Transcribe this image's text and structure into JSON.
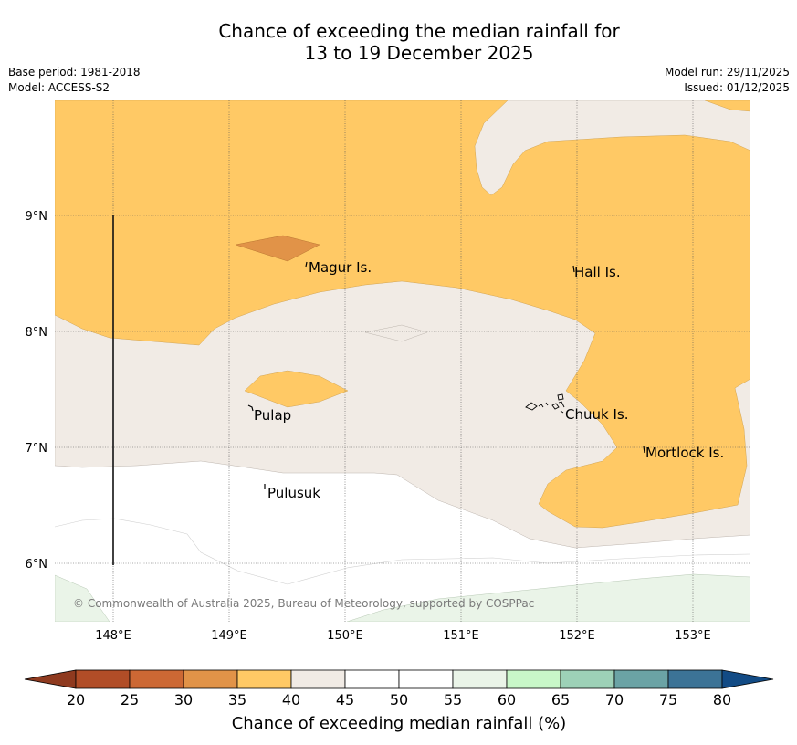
{
  "title": {
    "line1": "Chance of exceeding the median rainfall for",
    "line2": "13 to 19 December 2025"
  },
  "meta": {
    "base_period": "Base period: 1981-2018",
    "model": "Model: ACCESS-S2",
    "model_run": "Model run: 29/11/2025",
    "issued": "Issued: 01/12/2025"
  },
  "map": {
    "copyright": "© Commonwealth of Australia 2025, Bureau of Meteorology, supported by COSPPac",
    "lat_labels": [
      "9°N",
      "8°N",
      "7°N",
      "6°N"
    ],
    "lon_labels": [
      "148°E",
      "149°E",
      "150°E",
      "151°E",
      "152°E",
      "153°E"
    ],
    "places": [
      "Magur Is.",
      "Hall Is.",
      "Pulap",
      "Chuuk Is.",
      "Mortlock Is.",
      "Pulusuk"
    ]
  },
  "legend": {
    "title": "Chance of exceeding median rainfall (%)",
    "ticks": [
      "20",
      "25",
      "30",
      "35",
      "40",
      "45",
      "50",
      "55",
      "60",
      "65",
      "70",
      "75",
      "80"
    ],
    "colors": {
      "lt20": "#8f3a1f",
      "20-25": "#b14d27",
      "25-30": "#cc6834",
      "30-35": "#e19348",
      "35-40": "#ffc965",
      "40-45": "#f1ebe5",
      "45-50": "#ffffff",
      "50-55": "#ffffff",
      "55-60": "#eaf4e8",
      "60-65": "#c8f7c8",
      "65-70": "#9dd1b7",
      "70-75": "#6ba3a5",
      "75-80": "#3c7396",
      "gt80": "#124b85"
    }
  }
}
